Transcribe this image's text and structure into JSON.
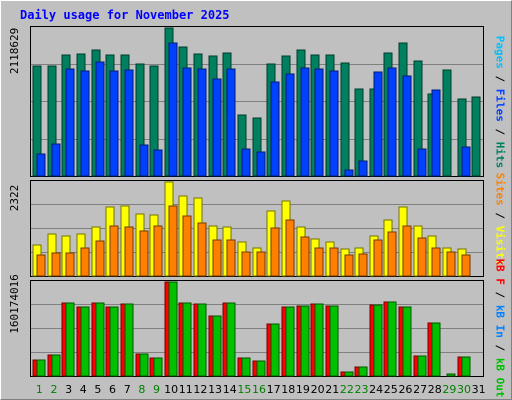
{
  "title": "Daily usage for November 2025",
  "panels": [
    {
      "max_label": "2118629",
      "legend": [
        {
          "text": "Pages",
          "color": "#00c0ff"
        },
        {
          "text": " / ",
          "color": "#000000"
        },
        {
          "text": "Files",
          "color": "#0040ff"
        },
        {
          "text": " / ",
          "color": "#000000"
        },
        {
          "text": "Hits",
          "color": "#008060"
        }
      ]
    },
    {
      "max_label": "2322",
      "legend": [
        {
          "text": "Sites",
          "color": "#ff8000"
        },
        {
          "text": " / ",
          "color": "#000000"
        },
        {
          "text": "Visits",
          "color": "#ffff00"
        }
      ]
    },
    {
      "max_label": "160174016",
      "legend": [
        {
          "text": "kB F",
          "color": "#ff0000"
        },
        {
          "text": " / ",
          "color": "#000000"
        },
        {
          "text": "kB In",
          "color": "#0080ff"
        },
        {
          "text": " / ",
          "color": "#000000"
        },
        {
          "text": "kB Out",
          "color": "#00c000"
        }
      ]
    }
  ],
  "colors": {
    "hits": "#00805f",
    "files": "#0040ff",
    "pages": "#00c0ff",
    "visits": "#ffff00",
    "sites": "#ff8000",
    "kbf": "#ff0000",
    "kbout": "#00c000",
    "weekday_label": "#000000",
    "weekend_label": "#008000"
  },
  "chart_data": [
    {
      "type": "bar",
      "title": "Daily usage for November 2025",
      "categories": [
        "1",
        "2",
        "3",
        "4",
        "5",
        "6",
        "7",
        "8",
        "9",
        "10",
        "11",
        "12",
        "13",
        "14",
        "15",
        "16",
        "17",
        "18",
        "19",
        "20",
        "21",
        "22",
        "23",
        "24",
        "25",
        "26",
        "27",
        "28",
        "29",
        "30",
        "31"
      ],
      "weekend": [
        1,
        2,
        8,
        9,
        15,
        16,
        22,
        23,
        29,
        30
      ],
      "ylim": [
        0,
        2118629
      ],
      "series": [
        {
          "name": "Hits",
          "values": [
            1580000,
            1580000,
            1730000,
            1740000,
            1810000,
            1730000,
            1730000,
            1600000,
            1580000,
            2118629,
            1850000,
            1750000,
            1720000,
            1760000,
            880000,
            830000,
            1600000,
            1720000,
            1810000,
            1730000,
            1730000,
            1620000,
            1240000,
            1240000,
            1760000,
            1900000,
            1650000,
            1170000,
            1520000,
            1100000,
            1130000
          ]
        },
        {
          "name": "Files",
          "values": [
            320000,
            460000,
            1530000,
            1500000,
            1630000,
            1500000,
            1520000,
            440000,
            370000,
            1910000,
            1540000,
            1530000,
            1390000,
            1530000,
            390000,
            350000,
            1340000,
            1460000,
            1550000,
            1530000,
            1510000,
            80000,
            210000,
            1490000,
            1540000,
            1430000,
            380000,
            1230000,
            0,
            410000,
            0
          ]
        },
        {
          "name": "Pages",
          "values": [
            0,
            0,
            0,
            0,
            0,
            0,
            0,
            0,
            0,
            0,
            0,
            0,
            0,
            0,
            0,
            0,
            0,
            0,
            0,
            0,
            0,
            0,
            0,
            0,
            0,
            0,
            0,
            0,
            0,
            0,
            0
          ]
        }
      ]
    },
    {
      "type": "bar",
      "categories": [
        "1",
        "2",
        "3",
        "4",
        "5",
        "6",
        "7",
        "8",
        "9",
        "10",
        "11",
        "12",
        "13",
        "14",
        "15",
        "16",
        "17",
        "18",
        "19",
        "20",
        "21",
        "22",
        "23",
        "24",
        "25",
        "26",
        "27",
        "28",
        "29",
        "30",
        "31"
      ],
      "ylim": [
        0,
        2322
      ],
      "series": [
        {
          "name": "Visits",
          "values": [
            760,
            1030,
            1000,
            1040,
            1210,
            1700,
            1730,
            1520,
            1500,
            2322,
            1975,
            1920,
            1240,
            1200,
            850,
            700,
            1600,
            1860,
            1220,
            910,
            835,
            660,
            700,
            1000,
            1380,
            1700,
            1240,
            1000,
            700,
            670,
            0
          ]
        },
        {
          "name": "Sites",
          "values": [
            530,
            580,
            580,
            700,
            860,
            1230,
            1220,
            1100,
            1240,
            1720,
            1480,
            1300,
            900,
            900,
            600,
            600,
            1180,
            1380,
            960,
            700,
            700,
            520,
            550,
            880,
            1080,
            1240,
            930,
            700,
            600,
            530,
            0
          ]
        }
      ]
    },
    {
      "type": "bar",
      "categories": [
        "1",
        "2",
        "3",
        "4",
        "5",
        "6",
        "7",
        "8",
        "9",
        "10",
        "11",
        "12",
        "13",
        "14",
        "15",
        "16",
        "17",
        "18",
        "19",
        "20",
        "21",
        "22",
        "23",
        "24",
        "25",
        "26",
        "27",
        "28",
        "29",
        "30",
        "31"
      ],
      "ylim": [
        0,
        160174016
      ],
      "series": [
        {
          "name": "kB F",
          "values": [
            27000000,
            36000000,
            125000000,
            117000000,
            125000000,
            118000000,
            122000000,
            38000000,
            30000000,
            160174016,
            124000000,
            123000000,
            102000000,
            125000000,
            30000000,
            26000000,
            88000000,
            118000000,
            120000000,
            122000000,
            119000000,
            6000000,
            16000000,
            121000000,
            126000000,
            118000000,
            34000000,
            90000000,
            0,
            32000000,
            0
          ]
        },
        {
          "name": "kB Out",
          "values": [
            27000000,
            36000000,
            125000000,
            117000000,
            125000000,
            118000000,
            122000000,
            38000000,
            30000000,
            160174016,
            124000000,
            123000000,
            102000000,
            125000000,
            30000000,
            26000000,
            88000000,
            118000000,
            120000000,
            122000000,
            119000000,
            6000000,
            16000000,
            121000000,
            126000000,
            118000000,
            34000000,
            90000000,
            3000000,
            32000000,
            0
          ]
        }
      ]
    }
  ]
}
